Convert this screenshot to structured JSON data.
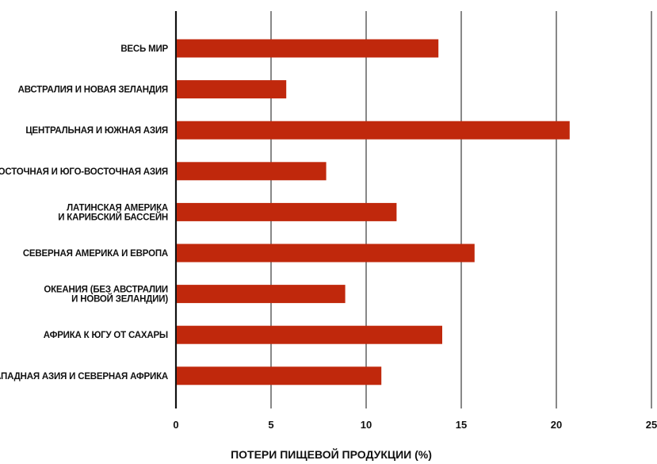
{
  "chart_data": {
    "type": "bar",
    "orientation": "horizontal",
    "categories": [
      "ВЕСЬ МИР",
      "АВСТРАЛИЯ И НОВАЯ ЗЕЛАНДИЯ",
      "ЦЕНТРАЛЬНАЯ И ЮЖНАЯ АЗИЯ",
      "ВОСТОЧНАЯ И ЮГО-ВОСТОЧНАЯ АЗИЯ",
      "ЛАТИНСКАЯ АМЕРИКА\nИ КАРИБСКИЙ БАССЕЙН",
      "СЕВЕРНАЯ АМЕРИКА И ЕВРОПА",
      "ОКЕАНИЯ (БЕЗ АВСТРАЛИИ\nИ НОВОЙ ЗЕЛАНДИИ)",
      "АФРИКА К ЮГУ ОТ САХАРЫ",
      "ЗАПАДНАЯ АЗИЯ И СЕВЕРНАЯ АФРИКА"
    ],
    "values": [
      13.8,
      5.8,
      20.7,
      7.9,
      11.6,
      15.7,
      8.9,
      14.0,
      10.8
    ],
    "xlabel": "ПОТЕРИ ПИЩЕВОЙ ПРОДУКЦИИ (%)",
    "xlim": [
      0,
      25
    ],
    "xticks": [
      0,
      5,
      10,
      15,
      20,
      25
    ],
    "grid": "vertical",
    "legend": "none",
    "bar_color": "#c0280c",
    "grid_color": "#111111"
  }
}
